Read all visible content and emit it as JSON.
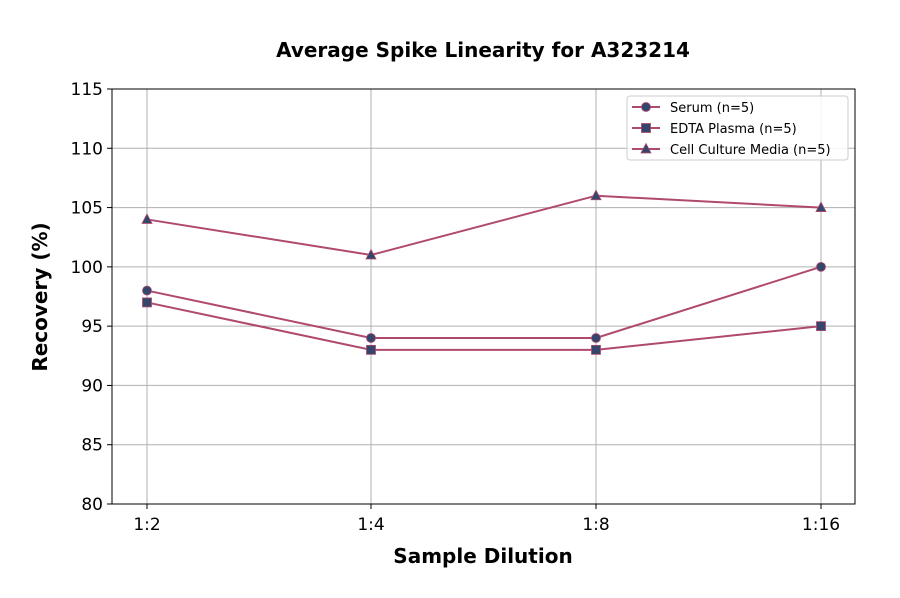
{
  "chart_data": {
    "type": "line",
    "title": "Average Spike Linearity for A323214",
    "xlabel": "Sample Dilution",
    "ylabel": "Recovery (%)",
    "categories": [
      "1:2",
      "1:4",
      "1:8",
      "1:16"
    ],
    "ylim": [
      80,
      115
    ],
    "yticks": [
      80,
      85,
      90,
      95,
      100,
      105,
      110,
      115
    ],
    "grid": true,
    "legend_position": "top-right",
    "line_color": "#b0496f",
    "marker_color": "#34466b",
    "series": [
      {
        "name": "Serum (n=5)",
        "marker": "circle",
        "values": [
          98,
          94,
          94,
          100
        ]
      },
      {
        "name": "EDTA Plasma (n=5)",
        "marker": "square",
        "values": [
          97,
          93,
          93,
          95
        ]
      },
      {
        "name": "Cell Culture Media (n=5)",
        "marker": "triangle",
        "values": [
          104,
          101,
          106,
          105
        ]
      }
    ]
  }
}
